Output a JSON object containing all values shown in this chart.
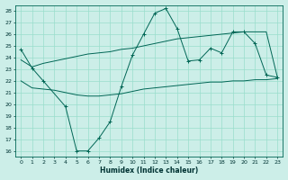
{
  "xlabel": "Humidex (Indice chaleur)",
  "bg_color": "#cceee8",
  "grid_color": "#99ddcc",
  "line_color": "#006655",
  "xlim": [
    -0.5,
    23.5
  ],
  "ylim": [
    15.5,
    28.5
  ],
  "yticks": [
    16,
    17,
    18,
    19,
    20,
    21,
    22,
    23,
    24,
    25,
    26,
    27,
    28
  ],
  "xticks": [
    0,
    1,
    2,
    3,
    4,
    5,
    6,
    7,
    8,
    9,
    10,
    11,
    12,
    13,
    14,
    15,
    16,
    17,
    18,
    19,
    20,
    21,
    22,
    23
  ],
  "main_x": [
    0,
    1,
    2,
    4,
    5,
    6,
    7,
    8,
    9,
    10,
    11,
    12,
    13,
    14,
    15,
    16,
    17,
    18,
    19,
    20,
    21,
    22,
    23
  ],
  "main_y": [
    24.7,
    23.1,
    22.0,
    19.8,
    16.0,
    16.0,
    17.1,
    18.5,
    21.5,
    24.2,
    26.0,
    27.8,
    28.2,
    26.5,
    23.7,
    23.8,
    24.8,
    24.4,
    26.2,
    26.2,
    25.2,
    22.5,
    22.3
  ],
  "upper_x": [
    0,
    1,
    2,
    3,
    4,
    5,
    6,
    7,
    8,
    9,
    10,
    11,
    12,
    13,
    14,
    15,
    16,
    17,
    18,
    19,
    20,
    21,
    22,
    23
  ],
  "upper_y": [
    23.8,
    23.2,
    23.5,
    23.7,
    23.9,
    24.1,
    24.3,
    24.4,
    24.5,
    24.7,
    24.8,
    25.0,
    25.2,
    25.4,
    25.6,
    25.7,
    25.8,
    25.9,
    26.0,
    26.1,
    26.2,
    26.2,
    26.2,
    22.3
  ],
  "lower_x": [
    0,
    1,
    2,
    3,
    4,
    5,
    6,
    7,
    8,
    9,
    10,
    11,
    12,
    13,
    14,
    15,
    16,
    17,
    18,
    19,
    20,
    21,
    22,
    23
  ],
  "lower_y": [
    22.0,
    21.4,
    21.3,
    21.2,
    21.0,
    20.8,
    20.7,
    20.7,
    20.8,
    20.9,
    21.1,
    21.3,
    21.4,
    21.5,
    21.6,
    21.7,
    21.8,
    21.9,
    21.9,
    22.0,
    22.0,
    22.1,
    22.1,
    22.2
  ]
}
